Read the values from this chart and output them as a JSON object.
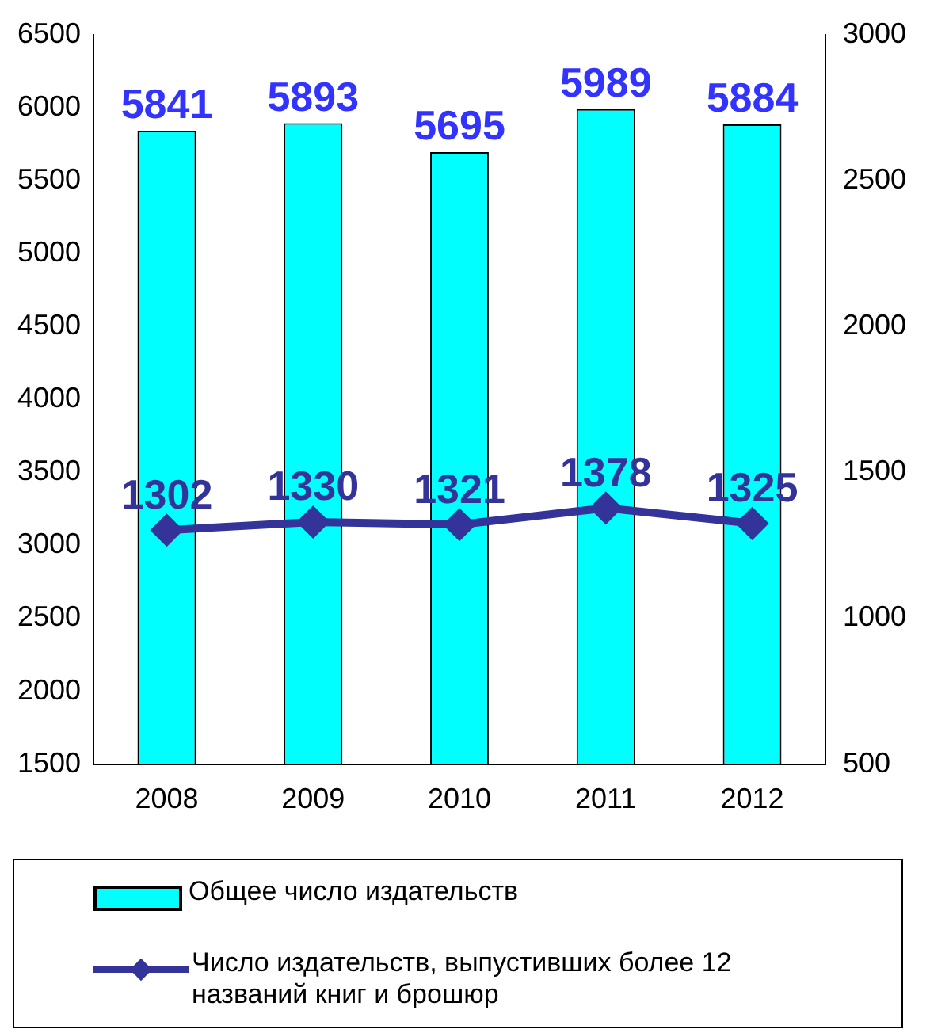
{
  "chart_data": {
    "type": "bar",
    "categories": [
      "2008",
      "2009",
      "2010",
      "2011",
      "2012"
    ],
    "series": [
      {
        "name": "Общее число издательств",
        "color": "#00ffff",
        "values": [
          5841,
          5893,
          5695,
          5989,
          5884
        ]
      },
      {
        "name": "Число издательств, выпустивших более 12 названий книг и брошюр",
        "type": "line",
        "axis": "y2",
        "color": "#333399",
        "values": [
          1302,
          1330,
          1321,
          1378,
          1325
        ]
      }
    ],
    "ylim": [
      1500,
      6500
    ],
    "yticks": [
      1500,
      2000,
      2500,
      3000,
      3500,
      4000,
      4500,
      5000,
      5500,
      6000,
      6500
    ],
    "y2lim": [
      500,
      3000
    ],
    "y2ticks": [
      500,
      1000,
      1500,
      2000,
      2500,
      3000
    ],
    "marker": "diamond",
    "data_labels": true,
    "legend": "bottom",
    "grid": false
  }
}
